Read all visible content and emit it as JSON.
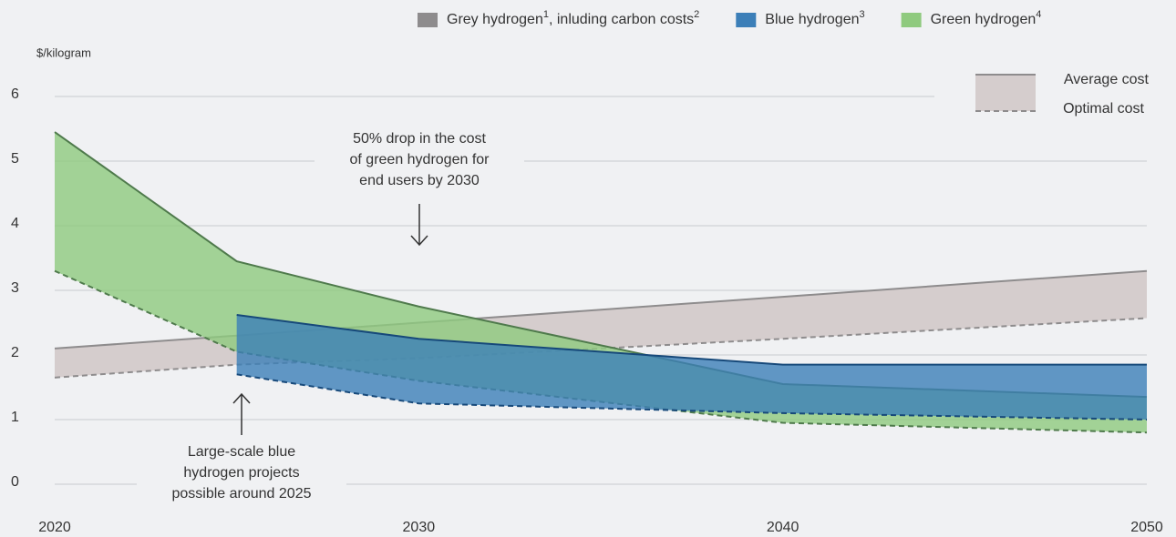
{
  "chart_data": {
    "type": "band",
    "y_label": "$/kilogram",
    "xlim": [
      2020,
      2050
    ],
    "xticks": [
      2020,
      2030,
      2040,
      2050
    ],
    "ylim": [
      0,
      6
    ],
    "yticks": [
      0,
      1,
      2,
      3,
      4,
      5,
      6
    ],
    "grid": true,
    "series": [
      {
        "name": [
          "Grey hydrogen",
          "1",
          ", inluding carbon costs",
          "2"
        ],
        "color": "#d5cdcd",
        "line_color": "#8e8c8d",
        "x": [
          2020,
          2025,
          2030,
          2040,
          2050
        ],
        "upper": [
          2.1,
          2.3,
          2.5,
          2.9,
          3.3
        ],
        "lower": [
          1.65,
          1.85,
          1.95,
          2.25,
          2.57
        ]
      },
      {
        "name": [
          "Green hydrogen",
          "4"
        ],
        "color": "#8fca7e",
        "line_color": "#4f7a4c",
        "x": [
          2020,
          2025,
          2030,
          2040,
          2050
        ],
        "upper": [
          5.45,
          3.45,
          2.75,
          1.55,
          1.35
        ],
        "lower": [
          3.3,
          2.05,
          1.6,
          0.95,
          0.8
        ]
      },
      {
        "name": [
          "Blue hydrogen",
          "3"
        ],
        "color": "#3c7fb8",
        "line_color": "#17497a",
        "x": [
          2025,
          2030,
          2040,
          2050
        ],
        "upper": [
          2.62,
          2.25,
          1.85,
          1.85
        ],
        "lower": [
          1.7,
          1.25,
          1.1,
          1.0
        ]
      }
    ],
    "legend_order": [
      0,
      2,
      1
    ],
    "line_legend": [
      "Average cost",
      "Optimal cost"
    ],
    "annotations": [
      [
        "50% drop in the cost",
        "of green hydrogen for",
        "end users by 2030"
      ],
      [
        "Large-scale blue",
        "hydrogen projects",
        "possible around 2025"
      ]
    ]
  }
}
